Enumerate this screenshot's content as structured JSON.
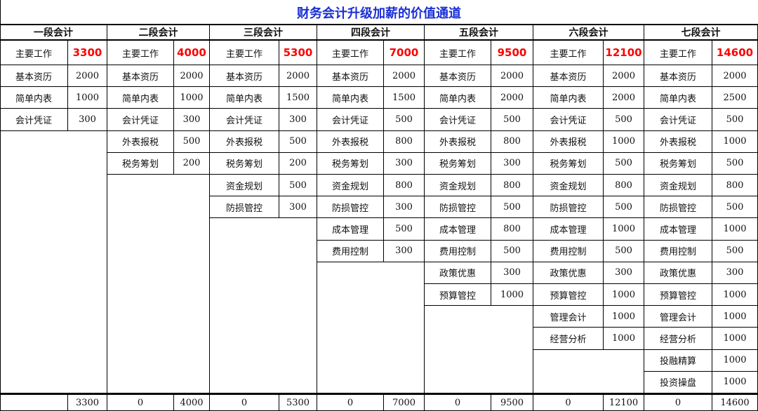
{
  "title": "财务会计升级加薪的价值通道",
  "stages": [
    {
      "name": "一段会计",
      "main_label": "主要工作",
      "main_value": "3300",
      "items": [
        [
          "基本资历",
          "2000"
        ],
        [
          "简单内表",
          "1000"
        ],
        [
          "会计凭证",
          "300"
        ]
      ],
      "footer_left": "",
      "footer_right": "3300"
    },
    {
      "name": "二段会计",
      "main_label": "主要工作",
      "main_value": "4000",
      "items": [
        [
          "基本资历",
          "2000"
        ],
        [
          "简单内表",
          "1000"
        ],
        [
          "会计凭证",
          "300"
        ],
        [
          "外表报税",
          "500"
        ],
        [
          "税务筹划",
          "200"
        ]
      ],
      "footer_left": "0",
      "footer_right": "4000"
    },
    {
      "name": "三段会计",
      "main_label": "主要工作",
      "main_value": "5300",
      "items": [
        [
          "基本资历",
          "2000"
        ],
        [
          "简单内表",
          "1500"
        ],
        [
          "会计凭证",
          "300"
        ],
        [
          "外表报税",
          "500"
        ],
        [
          "税务筹划",
          "200"
        ],
        [
          "资金规划",
          "500"
        ],
        [
          "防损管控",
          "300"
        ]
      ],
      "footer_left": "0",
      "footer_right": "5300"
    },
    {
      "name": "四段会计",
      "main_label": "主要工作",
      "main_value": "7000",
      "items": [
        [
          "基本资历",
          "2000"
        ],
        [
          "简单内表",
          "1500"
        ],
        [
          "会计凭证",
          "500"
        ],
        [
          "外表报税",
          "800"
        ],
        [
          "税务筹划",
          "300"
        ],
        [
          "资金规划",
          "800"
        ],
        [
          "防损管控",
          "300"
        ],
        [
          "成本管理",
          "500"
        ],
        [
          "费用控制",
          "300"
        ]
      ],
      "footer_left": "0",
      "footer_right": "7000"
    },
    {
      "name": "五段会计",
      "main_label": "主要工作",
      "main_value": "9500",
      "items": [
        [
          "基本资历",
          "2000"
        ],
        [
          "简单内表",
          "2000"
        ],
        [
          "会计凭证",
          "500"
        ],
        [
          "外表报税",
          "800"
        ],
        [
          "税务筹划",
          "300"
        ],
        [
          "资金规划",
          "800"
        ],
        [
          "防损管控",
          "500"
        ],
        [
          "成本管理",
          "800"
        ],
        [
          "费用控制",
          "500"
        ],
        [
          "政策优惠",
          "300"
        ],
        [
          "预算管控",
          "1000"
        ]
      ],
      "footer_left": "0",
      "footer_right": "9500"
    },
    {
      "name": "六段会计",
      "main_label": "主要工作",
      "main_value": "12100",
      "items": [
        [
          "基本资历",
          "2000"
        ],
        [
          "简单内表",
          "2000"
        ],
        [
          "会计凭证",
          "500"
        ],
        [
          "外表报税",
          "1000"
        ],
        [
          "税务筹划",
          "500"
        ],
        [
          "资金规划",
          "800"
        ],
        [
          "防损管控",
          "500"
        ],
        [
          "成本管理",
          "1000"
        ],
        [
          "费用控制",
          "500"
        ],
        [
          "政策优惠",
          "300"
        ],
        [
          "预算管控",
          "1000"
        ],
        [
          "管理会计",
          "1000"
        ],
        [
          "经营分析",
          "1000"
        ]
      ],
      "footer_left": "0",
      "footer_right": "12100"
    },
    {
      "name": "七段会计",
      "main_label": "主要工作",
      "main_value": "14600",
      "items": [
        [
          "基本资历",
          "2000"
        ],
        [
          "简单内表",
          "2500"
        ],
        [
          "会计凭证",
          "500"
        ],
        [
          "外表报税",
          "1000"
        ],
        [
          "税务筹划",
          "500"
        ],
        [
          "资金规划",
          "800"
        ],
        [
          "防损管控",
          "500"
        ],
        [
          "成本管理",
          "1000"
        ],
        [
          "费用控制",
          "500"
        ],
        [
          "政策优惠",
          "300"
        ],
        [
          "预算管控",
          "1000"
        ],
        [
          "管理会计",
          "1000"
        ],
        [
          "经营分析",
          "1000"
        ],
        [
          "投融精算",
          "1000"
        ],
        [
          "投资操盘",
          "1000"
        ]
      ],
      "footer_left": "0",
      "footer_right": "14600"
    }
  ]
}
